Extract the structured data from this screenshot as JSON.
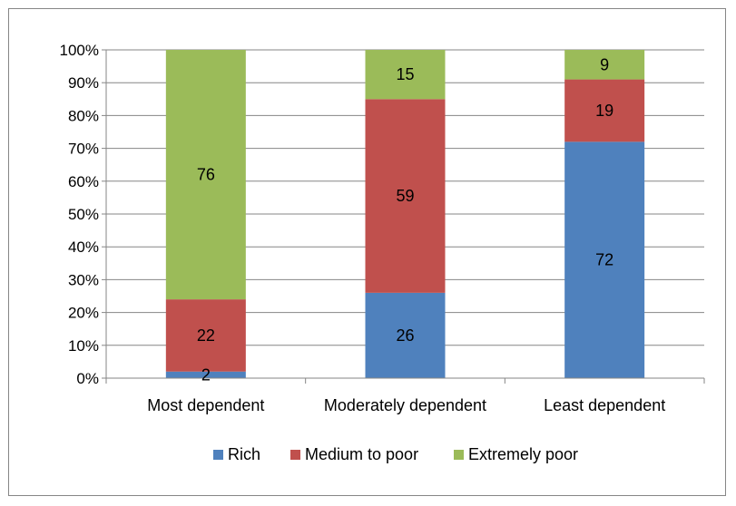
{
  "chart_data": {
    "type": "bar",
    "stacked": true,
    "percent_stacked": true,
    "categories": [
      "Most dependent",
      "Moderately dependent",
      "Least dependent"
    ],
    "series": [
      {
        "name": "Rich",
        "values": [
          2,
          26,
          72
        ],
        "color": "#4F81BD"
      },
      {
        "name": "Medium to poor",
        "values": [
          22,
          59,
          19
        ],
        "color": "#C0504D"
      },
      {
        "name": "Extremely poor",
        "values": [
          76,
          15,
          9
        ],
        "color": "#9BBB59"
      }
    ],
    "ylim": [
      0,
      100
    ],
    "yticks": [
      "0%",
      "10%",
      "20%",
      "30%",
      "40%",
      "50%",
      "60%",
      "70%",
      "80%",
      "90%",
      "100%"
    ],
    "grid": true,
    "legend_position": "bottom"
  }
}
